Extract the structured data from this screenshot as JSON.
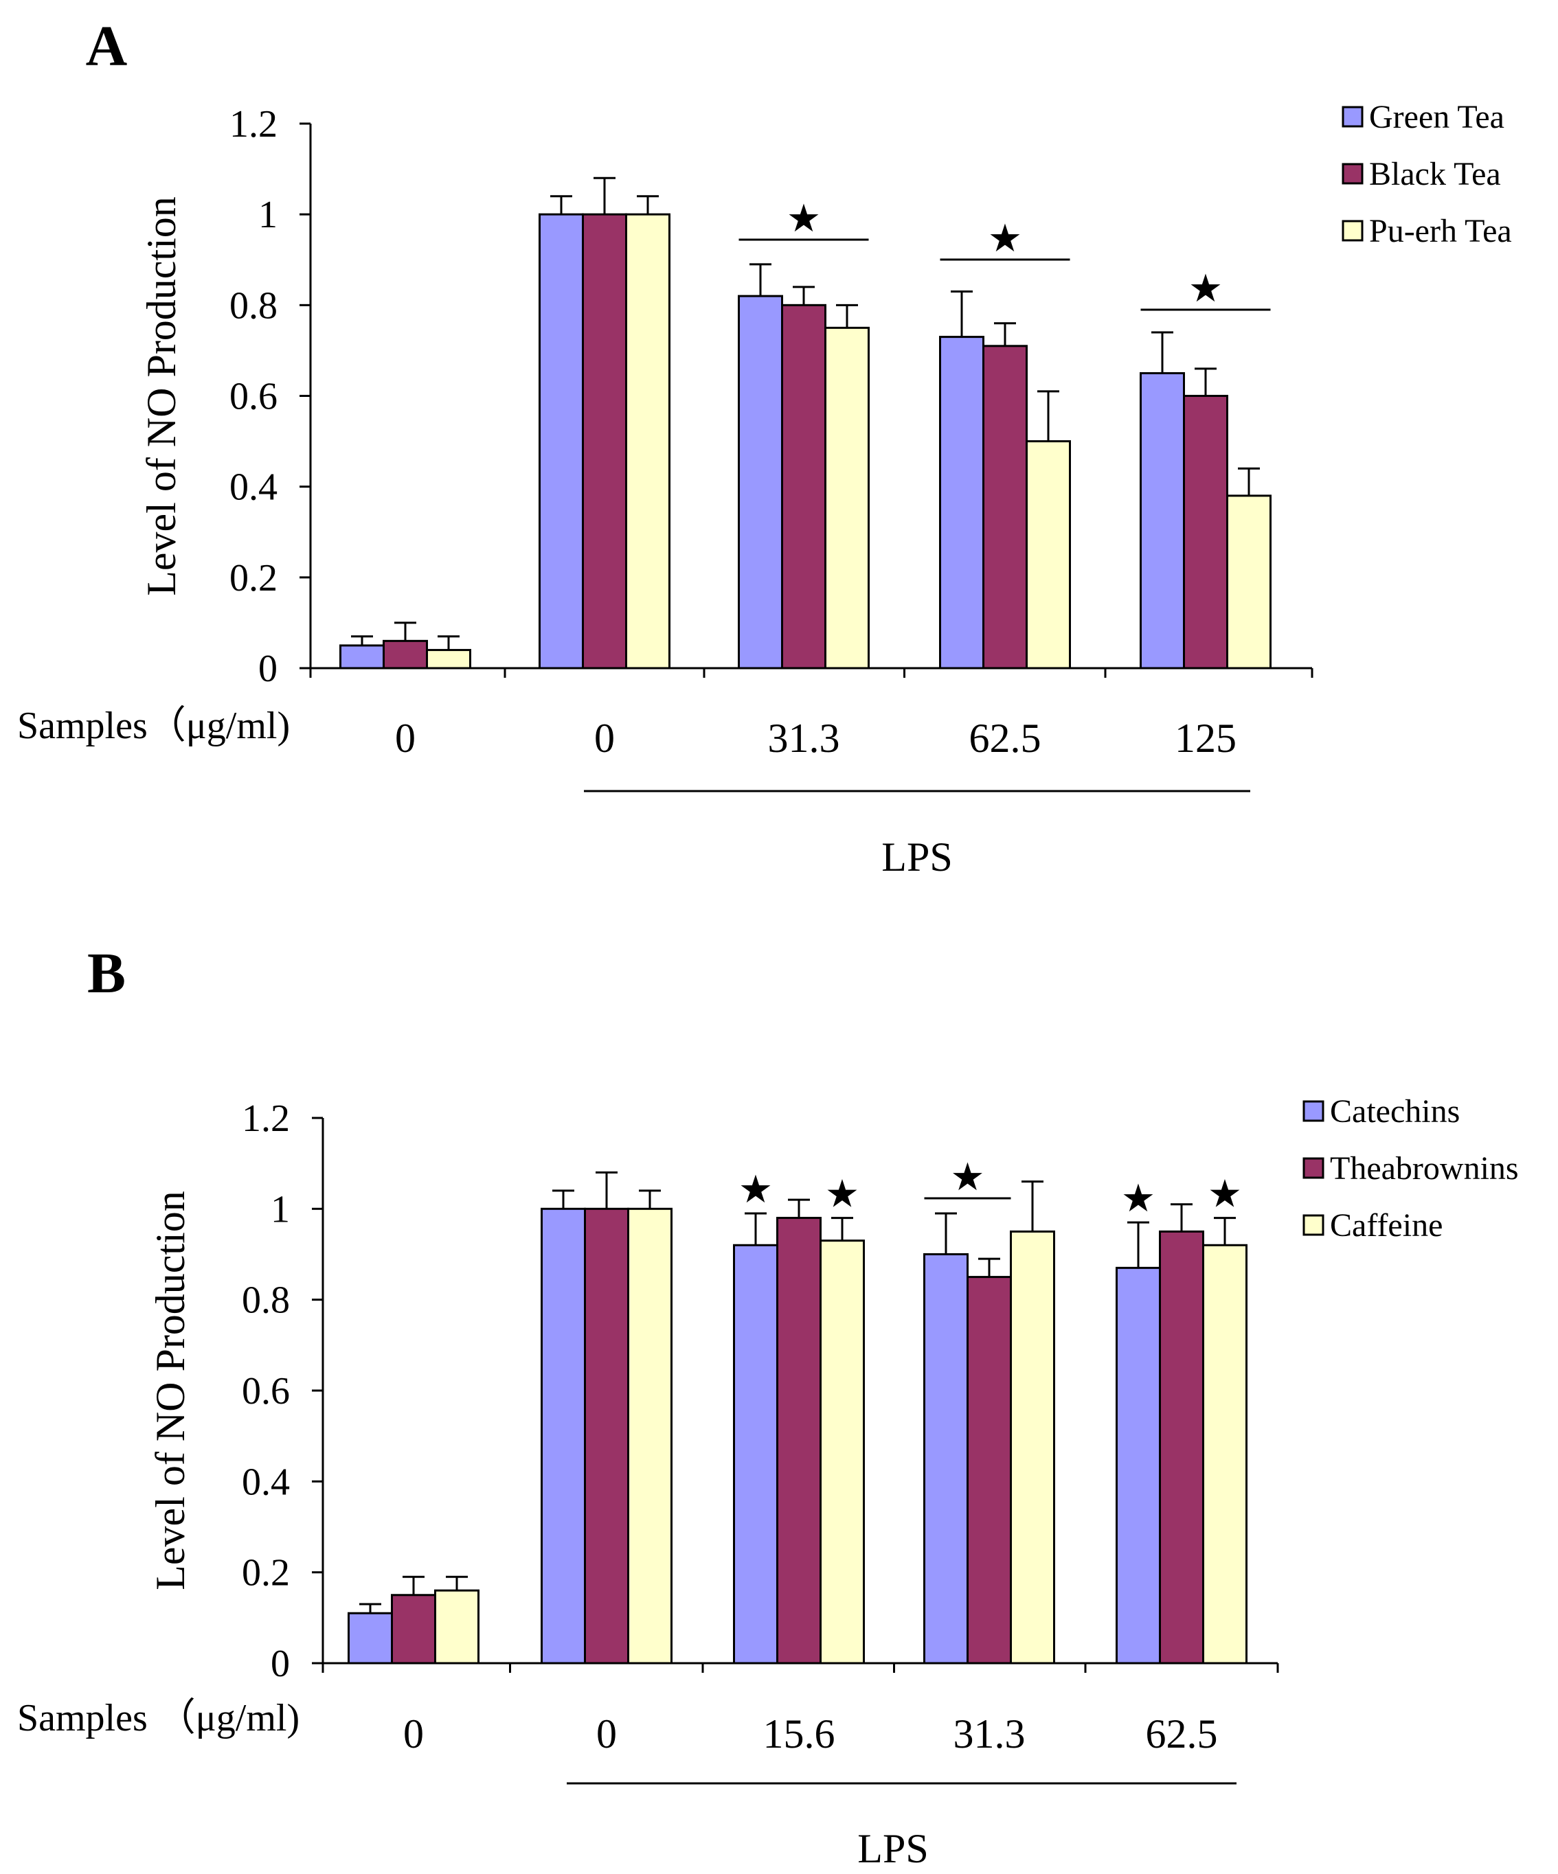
{
  "colors": {
    "series": [
      "#9999ff",
      "#993366",
      "#ffffcc"
    ],
    "axis": "#000000",
    "background": "#ffffff"
  },
  "chart_data": [
    {
      "type": "bar",
      "panel_label": "A",
      "ylabel": "Level of NO Production",
      "xlabel": "Samples（μg/ml)",
      "ylim": [
        0,
        1.2
      ],
      "yticks": [
        "0",
        "0.2",
        "0.4",
        "0.6",
        "0.8",
        "1",
        "1.2"
      ],
      "categories": [
        "0",
        "0",
        "31.3",
        "62.5",
        "125"
      ],
      "group_label": "LPS",
      "legend_position": "top-right",
      "series": [
        {
          "name": "Green Tea",
          "values": [
            0.05,
            1.0,
            0.82,
            0.73,
            0.65
          ],
          "errors": [
            0.02,
            0.04,
            0.07,
            0.1,
            0.09
          ]
        },
        {
          "name": "Black Tea",
          "values": [
            0.06,
            1.0,
            0.8,
            0.71,
            0.6
          ],
          "errors": [
            0.04,
            0.08,
            0.04,
            0.05,
            0.06
          ]
        },
        {
          "name": "Pu-erh Tea",
          "values": [
            0.04,
            1.0,
            0.75,
            0.5,
            0.38
          ],
          "errors": [
            0.03,
            0.04,
            0.05,
            0.11,
            0.06
          ]
        }
      ],
      "annotations": [
        {
          "text": "★",
          "category": 2,
          "type": "group"
        },
        {
          "text": "★",
          "category": 3,
          "type": "group"
        },
        {
          "text": "★",
          "category": 4,
          "type": "group"
        }
      ]
    },
    {
      "type": "bar",
      "panel_label": "B",
      "ylabel": "Level of NO Production",
      "xlabel": "Samples （μg/ml)",
      "ylim": [
        0,
        1.2
      ],
      "yticks": [
        "0",
        "0.2",
        "0.4",
        "0.6",
        "0.8",
        "1",
        "1.2"
      ],
      "categories": [
        "0",
        "0",
        "15.6",
        "31.3",
        "62.5"
      ],
      "group_label": "LPS",
      "legend_position": "top-right",
      "series": [
        {
          "name": "Catechins",
          "values": [
            0.11,
            1.0,
            0.92,
            0.9,
            0.87
          ],
          "errors": [
            0.02,
            0.04,
            0.07,
            0.09,
            0.1
          ]
        },
        {
          "name": "Theabrownins",
          "values": [
            0.15,
            1.0,
            0.98,
            0.85,
            0.95
          ],
          "errors": [
            0.04,
            0.08,
            0.04,
            0.04,
            0.06
          ]
        },
        {
          "name": "Caffeine",
          "values": [
            0.16,
            1.0,
            0.93,
            0.95,
            0.92
          ],
          "errors": [
            0.03,
            0.04,
            0.05,
            0.11,
            0.06
          ]
        }
      ],
      "annotations": [
        {
          "text": "★",
          "category": 2,
          "type": "single",
          "series": 0
        },
        {
          "text": "★",
          "category": 2,
          "type": "single",
          "series": 2
        },
        {
          "text": "★",
          "category": 3,
          "type": "pair",
          "series": [
            0,
            1
          ]
        },
        {
          "text": "★",
          "category": 4,
          "type": "single",
          "series": 0
        },
        {
          "text": "★",
          "category": 4,
          "type": "single",
          "series": 2
        }
      ]
    }
  ]
}
